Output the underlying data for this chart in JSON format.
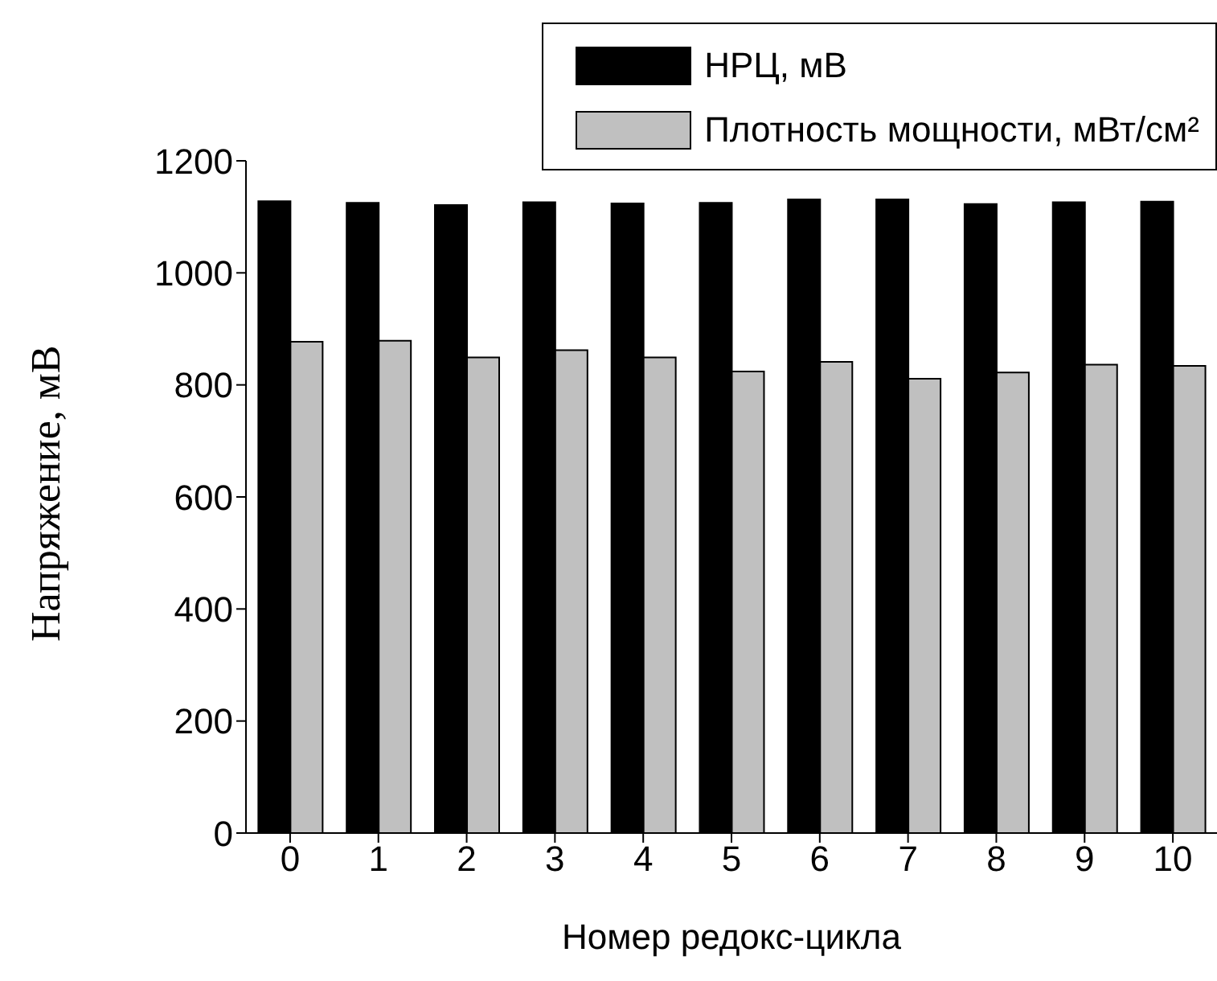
{
  "chart_data": {
    "type": "bar",
    "xlabel": "Номер редокс-цикла",
    "ylabel": "Напряжение, мВ",
    "categories": [
      "0",
      "1",
      "2",
      "3",
      "4",
      "5",
      "6",
      "7",
      "8",
      "9",
      "10"
    ],
    "series": [
      {
        "name": "НРЦ, мВ",
        "color": "#000000",
        "values": [
          1128,
          1125,
          1121,
          1126,
          1124,
          1125,
          1131,
          1131,
          1123,
          1126,
          1127
        ]
      },
      {
        "name": "Плотность мощности, мВт/см²",
        "color": "#c0c0c0",
        "values": [
          877,
          879,
          849,
          862,
          849,
          824,
          841,
          811,
          822,
          836,
          834
        ]
      }
    ],
    "ylim": [
      0,
      1200
    ],
    "yticks": [
      0,
      200,
      400,
      600,
      800,
      1000,
      1200
    ],
    "grid": false,
    "legend": "top right"
  }
}
